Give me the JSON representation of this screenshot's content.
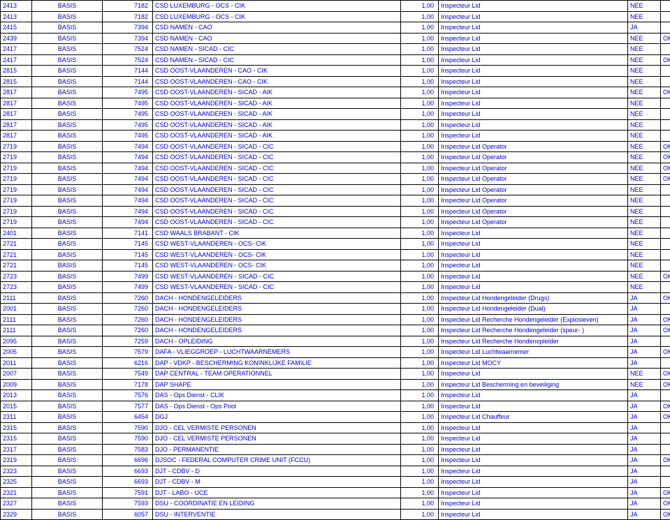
{
  "rows": [
    [
      "2413",
      "BASIS",
      "7182",
      "CSD LUXEMBURG - OCS - CIK",
      "1,00",
      "Inspecteur Lid",
      "NEE",
      ""
    ],
    [
      "2413",
      "BASIS",
      "7182",
      "CSD LUXEMBURG - OCS - CIK",
      "1,00",
      "Inspecteur Lid",
      "NEE",
      ""
    ],
    [
      "2415",
      "BASIS",
      "7394",
      "CSD NAMEN - CAO",
      "1,00",
      "Inspecteur Lid",
      "JA",
      ""
    ],
    [
      "2439",
      "BASIS",
      "7394",
      "CSD NAMEN - CAO",
      "1,00",
      "Inspecteur Lid",
      "NEE",
      "OK"
    ],
    [
      "2417",
      "BASIS",
      "7524",
      "CSD NAMEN - SICAD - CIC",
      "1,00",
      "Inspecteur Lid",
      "NEE",
      ""
    ],
    [
      "2417",
      "BASIS",
      "7524",
      "CSD NAMEN - SICAD - CIC",
      "1,00",
      "Inspecteur Lid",
      "NEE",
      "OK"
    ],
    [
      "2815",
      "BASIS",
      "7144",
      "CSD OOST-VLAANDEREN - CAO - CIK",
      "1,00",
      "Inspecteur Lid",
      "NEE",
      ""
    ],
    [
      "2815",
      "BASIS",
      "7144",
      "CSD OOST-VLAANDEREN - CAO - CIK",
      "1,00",
      "Inspecteur Lid",
      "NEE",
      ""
    ],
    [
      "2817",
      "BASIS",
      "7495",
      "CSD OOST-VLAANDEREN - SICAD - AIK",
      "1,00",
      "Inspecteur Lid",
      "NEE",
      "OK"
    ],
    [
      "2817",
      "BASIS",
      "7495",
      "CSD OOST-VLAANDEREN - SICAD - AIK",
      "1,00",
      "Inspecteur Lid",
      "NEE",
      ""
    ],
    [
      "2817",
      "BASIS",
      "7495",
      "CSD OOST-VLAANDEREN - SICAD - AIK",
      "1,00",
      "Inspecteur Lid",
      "NEE",
      ""
    ],
    [
      "2817",
      "BASIS",
      "7495",
      "CSD OOST-VLAANDEREN - SICAD - AIK",
      "1,00",
      "Inspecteur Lid",
      "NEE",
      ""
    ],
    [
      "2817",
      "BASIS",
      "7495",
      "CSD OOST-VLAANDEREN - SICAD - AIK",
      "1,00",
      "Inspecteur Lid",
      "NEE",
      ""
    ],
    [
      "2719",
      "BASIS",
      "7494",
      "CSD OOST-VLAANDEREN - SICAD - CIC",
      "1,00",
      "Inspecteur Lid Operator",
      "NEE",
      "OK"
    ],
    [
      "2719",
      "BASIS",
      "7494",
      "CSD OOST-VLAANDEREN - SICAD - CIC",
      "1,00",
      "Inspecteur Lid Operator",
      "NEE",
      "OK"
    ],
    [
      "2719",
      "BASIS",
      "7494",
      "CSD OOST-VLAANDEREN - SICAD - CIC",
      "1,00",
      "Inspecteur Lid Operator",
      "NEE",
      "OK"
    ],
    [
      "2719",
      "BASIS",
      "7494",
      "CSD OOST-VLAANDEREN - SICAD - CIC",
      "1,00",
      "Inspecteur Lid Operator",
      "NEE",
      "OK"
    ],
    [
      "2719",
      "BASIS",
      "7494",
      "CSD OOST-VLAANDEREN - SICAD - CIC",
      "1,00",
      "Inspecteur Lid Operator",
      "NEE",
      ""
    ],
    [
      "2719",
      "BASIS",
      "7494",
      "CSD OOST-VLAANDEREN - SICAD - CIC",
      "1,00",
      "Inspecteur Lid Operator",
      "NEE",
      ""
    ],
    [
      "2719",
      "BASIS",
      "7494",
      "CSD OOST-VLAANDEREN - SICAD - CIC",
      "1,00",
      "Inspecteur Lid Operator",
      "NEE",
      ""
    ],
    [
      "2719",
      "BASIS",
      "7494",
      "CSD OOST-VLAANDEREN - SICAD - CIC",
      "1,00",
      "Inspecteur Lid Operator",
      "NEE",
      ""
    ],
    [
      "2401",
      "BASIS",
      "7141",
      "CSD WAALS BRABANT - CIK",
      "1,00",
      "Inspecteur Lid",
      "NEE",
      ""
    ],
    [
      "2721",
      "BASIS",
      "7145",
      "CSD WEST-VLAANDEREN - OCS- CIK",
      "1,00",
      "Inspecteur Lid",
      "NEE",
      ""
    ],
    [
      "2721",
      "BASIS",
      "7145",
      "CSD WEST-VLAANDEREN - OCS- CIK",
      "1,00",
      "Inspecteur Lid",
      "NEE",
      ""
    ],
    [
      "2721",
      "BASIS",
      "7145",
      "CSD WEST-VLAANDEREN - OCS- CIK",
      "1,00",
      "Inspecteur Lid",
      "NEE",
      ""
    ],
    [
      "2723",
      "BASIS",
      "7499",
      "CSD WEST-VLAANDEREN - SICAD - CIC",
      "1,00",
      "Inspecteur Lid",
      "NEE",
      "OK"
    ],
    [
      "2723",
      "BASIS",
      "7499",
      "CSD WEST-VLAANDEREN - SICAD - CIC",
      "1,00",
      "Inspecteur Lid",
      "NEE",
      ""
    ],
    [
      "2111",
      "BASIS",
      "7260",
      "DACH - HONDENGELEIDERS",
      "1,00",
      "Inspecteur Lid Hondengeleider (Drugs)",
      "JA",
      "OK"
    ],
    [
      "2001",
      "BASIS",
      "7260",
      "DACH - HONDENGELEIDERS",
      "1,00",
      "Inspecteur Lid Hondengeleider (Dual)",
      "JA",
      ""
    ],
    [
      "2111",
      "BASIS",
      "7260",
      "DACH - HONDENGELEIDERS",
      "1,00",
      "Inspecteur Lid Recherche Hondengeleider (Explosieven)",
      "JA",
      "OK"
    ],
    [
      "2111",
      "BASIS",
      "7260",
      "DACH - HONDENGELEIDERS",
      "1,00",
      "Inspecteur Lid Recherche Hondengeleider (speur- )",
      "JA",
      "OK"
    ],
    [
      "2095",
      "BASIS",
      "7259",
      "DACH - OPLEIDING",
      "1,00",
      "Inspecteur Lid Recherche Hondenopleider",
      "JA",
      ""
    ],
    [
      "2005",
      "BASIS",
      "7579",
      "DAFA - VLIEGGROEP - LUCHTWAARNEMERS",
      "1,00",
      "Inspecteur Lid Luchtwaarnemer",
      "JA",
      "OK"
    ],
    [
      "2011",
      "BASIS",
      "6216",
      "DAP - VDKP - BESCHERMING KONINKLIJKE FAMILIE",
      "1,00",
      "Inspecteur Lid MOCY",
      "JA",
      ""
    ],
    [
      "2007",
      "BASIS",
      "7549",
      "DAP CENTRAL - TEAM OPERATIONNEL",
      "1,00",
      "Inspecteur Lid",
      "NEE",
      "OK"
    ],
    [
      "2009",
      "BASIS",
      "7178",
      "DAP SHAPE",
      "1,00",
      "Inspecteur Lid Bescherming en beveiliging",
      "NEE",
      "OK"
    ],
    [
      "2013",
      "BASIS",
      "7576",
      "DAS - Ops Dienst - CLIK",
      "1,00",
      "Inspecteur Lid",
      "JA",
      ""
    ],
    [
      "2015",
      "BASIS",
      "7577",
      "DAS - Ops Dienst - Ops Pool",
      "1,00",
      "Inspecteur Lid",
      "JA",
      "OK"
    ],
    [
      "2311",
      "BASIS",
      "6454",
      "DGJ",
      "1,00",
      "Inspecteur Lid Chauffeur",
      "JA",
      "OK"
    ],
    [
      "2315",
      "BASIS",
      "7590",
      "DJO - CEL VERMISTE PERSONEN",
      "1,00",
      "Inspecteur Lid",
      "JA",
      ""
    ],
    [
      "2315",
      "BASIS",
      "7590",
      "DJO - CEL VERMISTE PERSONEN",
      "1,00",
      "Inspecteur Lid",
      "JA",
      ""
    ],
    [
      "2317",
      "BASIS",
      "7583",
      "DJO - PERMANENTIE",
      "1,00",
      "Inspecteur Lid",
      "JA",
      ""
    ],
    [
      "2319",
      "BASIS",
      "6696",
      "DJSOC - FEDERAL COMPUTER CRIME UNIT (FCCU)",
      "1,00",
      "Inspecteur Lid",
      "JA",
      "OK"
    ],
    [
      "2323",
      "BASIS",
      "6693",
      "DJT - CDBV - D",
      "1,00",
      "Inspecteur Lid",
      "JA",
      ""
    ],
    [
      "2325",
      "BASIS",
      "6693",
      "DJT - CDBV - M",
      "1,00",
      "Inspecteur Lid",
      "JA",
      ""
    ],
    [
      "2321",
      "BASIS",
      "7591",
      "DJT - LABO - UCE",
      "1,00",
      "Inspecteur Lid",
      "JA",
      "OK"
    ],
    [
      "2327",
      "BASIS",
      "7593",
      "DSU - COORDINATIE EN LEIDING",
      "1,00",
      "Inspecteur Lid",
      "JA",
      "OK"
    ],
    [
      "2329",
      "BASIS",
      "6057",
      "DSU - INTERVENTIE",
      "1,00",
      "Inspecteur Lid",
      "JA",
      "OK"
    ]
  ]
}
